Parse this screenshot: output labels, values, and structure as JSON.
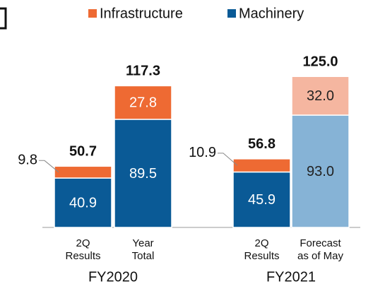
{
  "chart_data": {
    "type": "bar",
    "categories": [
      [
        "2Q",
        "Results"
      ],
      [
        "Year",
        "Total"
      ],
      [
        "2Q",
        "Results"
      ],
      [
        "Forecast",
        "as of May"
      ]
    ],
    "groups": [
      "FY2020",
      "FY2021"
    ],
    "stacked": true,
    "series": [
      {
        "name": "Machinery",
        "color": "#0a5a96",
        "colors": [
          "#0a5a96",
          "#0a5a96",
          "#0a5a96",
          "#86b3d6"
        ],
        "values": [
          40.9,
          89.5,
          45.9,
          93.0
        ],
        "value_labels": [
          "40.9",
          "89.5",
          "45.9",
          "93.0"
        ]
      },
      {
        "name": "Infrastructure",
        "color": "#ee6a33",
        "colors": [
          "#ee6a33",
          "#ee6a33",
          "#ee6a33",
          "#f5b6a0"
        ],
        "values": [
          9.8,
          27.8,
          10.9,
          32.0
        ],
        "value_labels": [
          "9.8",
          "27.8",
          "10.9",
          "32.0"
        ]
      }
    ],
    "totals": {
      "values": [
        50.7,
        117.3,
        56.8,
        125.0
      ],
      "value_labels": [
        "50.7",
        "117.3",
        "56.8",
        "125.0"
      ]
    },
    "legend": "top"
  }
}
